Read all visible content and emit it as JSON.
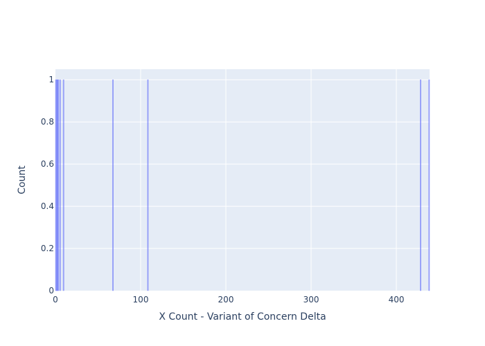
{
  "chart_data": {
    "type": "bar",
    "title": "",
    "xlabel": "X Count - Variant of Concern Delta",
    "ylabel": "Count",
    "xlim": [
      0,
      439
    ],
    "ylim": [
      0,
      1.05
    ],
    "x_ticks": [
      0,
      100,
      200,
      300,
      400
    ],
    "y_ticks": [
      0,
      0.2,
      0.4,
      0.6,
      0.8,
      1
    ],
    "y_tick_labels": [
      "0",
      "0.2",
      "0.4",
      "0.6",
      "0.8",
      "1"
    ],
    "grid": true,
    "bar_width": 1,
    "bars": [
      {
        "x": 0.5,
        "y": 1
      },
      {
        "x": 1.5,
        "y": 1
      },
      {
        "x": 2.5,
        "y": 1
      },
      {
        "x": 3.5,
        "y": 1
      },
      {
        "x": 5.5,
        "y": 1
      },
      {
        "x": 9.5,
        "y": 1
      },
      {
        "x": 67.5,
        "y": 1
      },
      {
        "x": 108.5,
        "y": 1
      },
      {
        "x": 428.5,
        "y": 1
      },
      {
        "x": 438.5,
        "y": 1
      }
    ],
    "colors": {
      "bar_fill": "#636efa",
      "bar_line": "#636efa",
      "plot_bg": "#e5ecf6",
      "grid": "#ffffff",
      "text": "#2a3f5f"
    }
  }
}
